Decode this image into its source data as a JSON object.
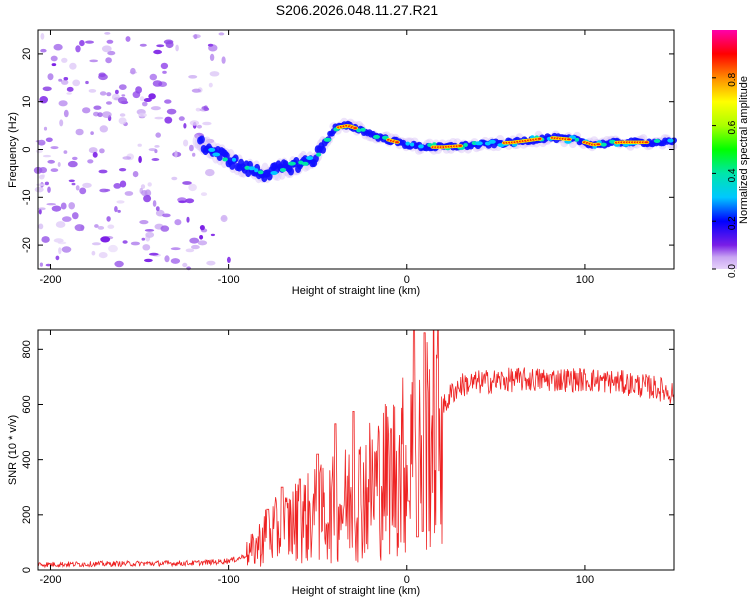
{
  "title": "S206.2026.048.11.27.R21",
  "chart_data": [
    {
      "type": "heatmap",
      "name": "spectrogram",
      "xlabel": "Height of straight line (km)",
      "ylabel": "Frequency (Hz)",
      "xlim": [
        -207,
        150
      ],
      "ylim": [
        -25,
        25
      ],
      "xticks": [
        -200,
        -100,
        0,
        100
      ],
      "yticks": [
        -20,
        -10,
        0,
        10,
        20
      ],
      "colorbar": {
        "label": "Normalized spectral amplitude",
        "range": [
          0,
          1
        ],
        "ticks": [
          0.0,
          0.2,
          0.4,
          0.6,
          0.8
        ]
      },
      "ridge": [
        {
          "x": -115,
          "y": 1
        },
        {
          "x": -110,
          "y": 0
        },
        {
          "x": -100,
          "y": -2
        },
        {
          "x": -90,
          "y": -4
        },
        {
          "x": -80,
          "y": -5
        },
        {
          "x": -70,
          "y": -4
        },
        {
          "x": -60,
          "y": -3
        },
        {
          "x": -52,
          "y": -2
        },
        {
          "x": -45,
          "y": 2
        },
        {
          "x": -40,
          "y": 4.5
        },
        {
          "x": -33,
          "y": 5
        },
        {
          "x": -25,
          "y": 4
        },
        {
          "x": -15,
          "y": 2.5
        },
        {
          "x": -5,
          "y": 1.5
        },
        {
          "x": 0,
          "y": 1
        },
        {
          "x": 10,
          "y": 0.5
        },
        {
          "x": 20,
          "y": 0.5
        },
        {
          "x": 40,
          "y": 1
        },
        {
          "x": 60,
          "y": 1.5
        },
        {
          "x": 80,
          "y": 2.5
        },
        {
          "x": 95,
          "y": 2
        },
        {
          "x": 105,
          "y": 1
        },
        {
          "x": 120,
          "y": 1.5
        },
        {
          "x": 135,
          "y": 1.5
        },
        {
          "x": 150,
          "y": 1.5
        }
      ]
    },
    {
      "type": "line",
      "name": "snr",
      "xlabel": "Height of straight line (km)",
      "ylabel": "SNR (10 * v/v)",
      "xlim": [
        -207,
        150
      ],
      "ylim": [
        0,
        870
      ],
      "xticks": [
        -200,
        -100,
        0,
        100
      ],
      "yticks": [
        0,
        200,
        400,
        600,
        800
      ],
      "color": "#ee2222",
      "envelope": [
        {
          "x": -207,
          "y": 20
        },
        {
          "x": -120,
          "y": 25
        },
        {
          "x": -105,
          "y": 30
        },
        {
          "x": -95,
          "y": 40
        },
        {
          "x": -90,
          "y": 55
        },
        {
          "x": -85,
          "y": 80
        },
        {
          "x": -80,
          "y": 120
        },
        {
          "x": -70,
          "y": 150
        },
        {
          "x": -60,
          "y": 180
        },
        {
          "x": -50,
          "y": 200
        },
        {
          "x": -40,
          "y": 220
        },
        {
          "x": -30,
          "y": 260
        },
        {
          "x": -20,
          "y": 300
        },
        {
          "x": -10,
          "y": 340
        },
        {
          "x": 0,
          "y": 390
        },
        {
          "x": 5,
          "y": 420
        },
        {
          "x": 10,
          "y": 460
        },
        {
          "x": 15,
          "y": 520
        },
        {
          "x": 20,
          "y": 580
        },
        {
          "x": 25,
          "y": 640
        },
        {
          "x": 30,
          "y": 670
        },
        {
          "x": 40,
          "y": 680
        },
        {
          "x": 60,
          "y": 690
        },
        {
          "x": 80,
          "y": 690
        },
        {
          "x": 100,
          "y": 690
        },
        {
          "x": 120,
          "y": 680
        },
        {
          "x": 140,
          "y": 660
        },
        {
          "x": 150,
          "y": 640
        }
      ],
      "peaks": [
        {
          "x": 4,
          "y": 870
        },
        {
          "x": 10,
          "y": 860
        },
        {
          "x": -30,
          "y": 575
        },
        {
          "x": -40,
          "y": 530
        },
        {
          "x": -50,
          "y": 420
        },
        {
          "x": -60,
          "y": 330
        },
        {
          "x": -70,
          "y": 300
        },
        {
          "x": -78,
          "y": 220
        }
      ],
      "dips": [
        {
          "x": 6,
          "y": 120
        },
        {
          "x": 9,
          "y": 140
        },
        {
          "x": 1,
          "y": 250
        }
      ]
    }
  ]
}
